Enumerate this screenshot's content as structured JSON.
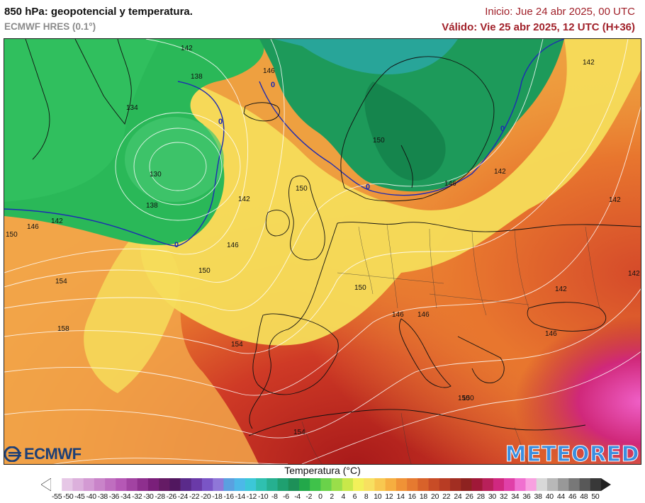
{
  "header": {
    "title": "850 hPa: geopotencial y temperatura.",
    "model": "ECMWF HRES (0.1°)",
    "init": "Inicio: Jue 24 abr 2025, 00 UTC",
    "valid": "Válido: Vie 25 abr 2025, 12 UTC (H+36)"
  },
  "map": {
    "geopotential_labels": [
      "142",
      "138",
      "134",
      "130",
      "138",
      "142",
      "146",
      "146",
      "146",
      "150",
      "154",
      "158",
      "154",
      "150",
      "150",
      "150",
      "146",
      "142",
      "146",
      "142",
      "146",
      "150",
      "154",
      "150",
      "142",
      "142",
      "142",
      "142",
      "146",
      "150"
    ],
    "zero_isotherm_label": "0"
  },
  "logos": {
    "ecmwf": "ECMWF",
    "meteored": "METEORED"
  },
  "legend": {
    "title": "Temperatura (°C)",
    "ticks": [
      "-55",
      "-50",
      "-45",
      "-40",
      "-38",
      "-36",
      "-34",
      "-32",
      "-30",
      "-28",
      "-26",
      "-24",
      "-22",
      "-20",
      "-18",
      "-16",
      "-14",
      "-12",
      "-10",
      "-8",
      "-6",
      "-4",
      "-2",
      "0",
      "2",
      "4",
      "6",
      "8",
      "10",
      "12",
      "14",
      "16",
      "18",
      "20",
      "22",
      "24",
      "26",
      "28",
      "30",
      "32",
      "34",
      "36",
      "38",
      "40",
      "44",
      "46",
      "48",
      "50"
    ],
    "colors": [
      "#ffffff",
      "#e6c7e6",
      "#dcb0dc",
      "#d39ad3",
      "#c984c9",
      "#bf6ebf",
      "#b558b5",
      "#a243a2",
      "#8e2f8e",
      "#7a1f7a",
      "#651b65",
      "#51175f",
      "#5a2a8a",
      "#6a3aa8",
      "#7a55c6",
      "#8f77d8",
      "#5aa0e0",
      "#4cb8e8",
      "#3cc7d8",
      "#2fc0b0",
      "#26b090",
      "#1fa070",
      "#1d9058",
      "#22a84a",
      "#3fc24a",
      "#6ad24a",
      "#9ade4a",
      "#c8e84a",
      "#f2f05a",
      "#f8e060",
      "#f8c850",
      "#f6ae40",
      "#f09236",
      "#e67a30",
      "#d8622a",
      "#c84c26",
      "#b83c24",
      "#a22e22",
      "#8e2220",
      "#a01838",
      "#b8205a",
      "#d02880",
      "#e040a8",
      "#f070d0",
      "#f8a0e0",
      "#d8d8d8",
      "#b8b8b8",
      "#989898",
      "#787878",
      "#585858",
      "#383838"
    ]
  }
}
